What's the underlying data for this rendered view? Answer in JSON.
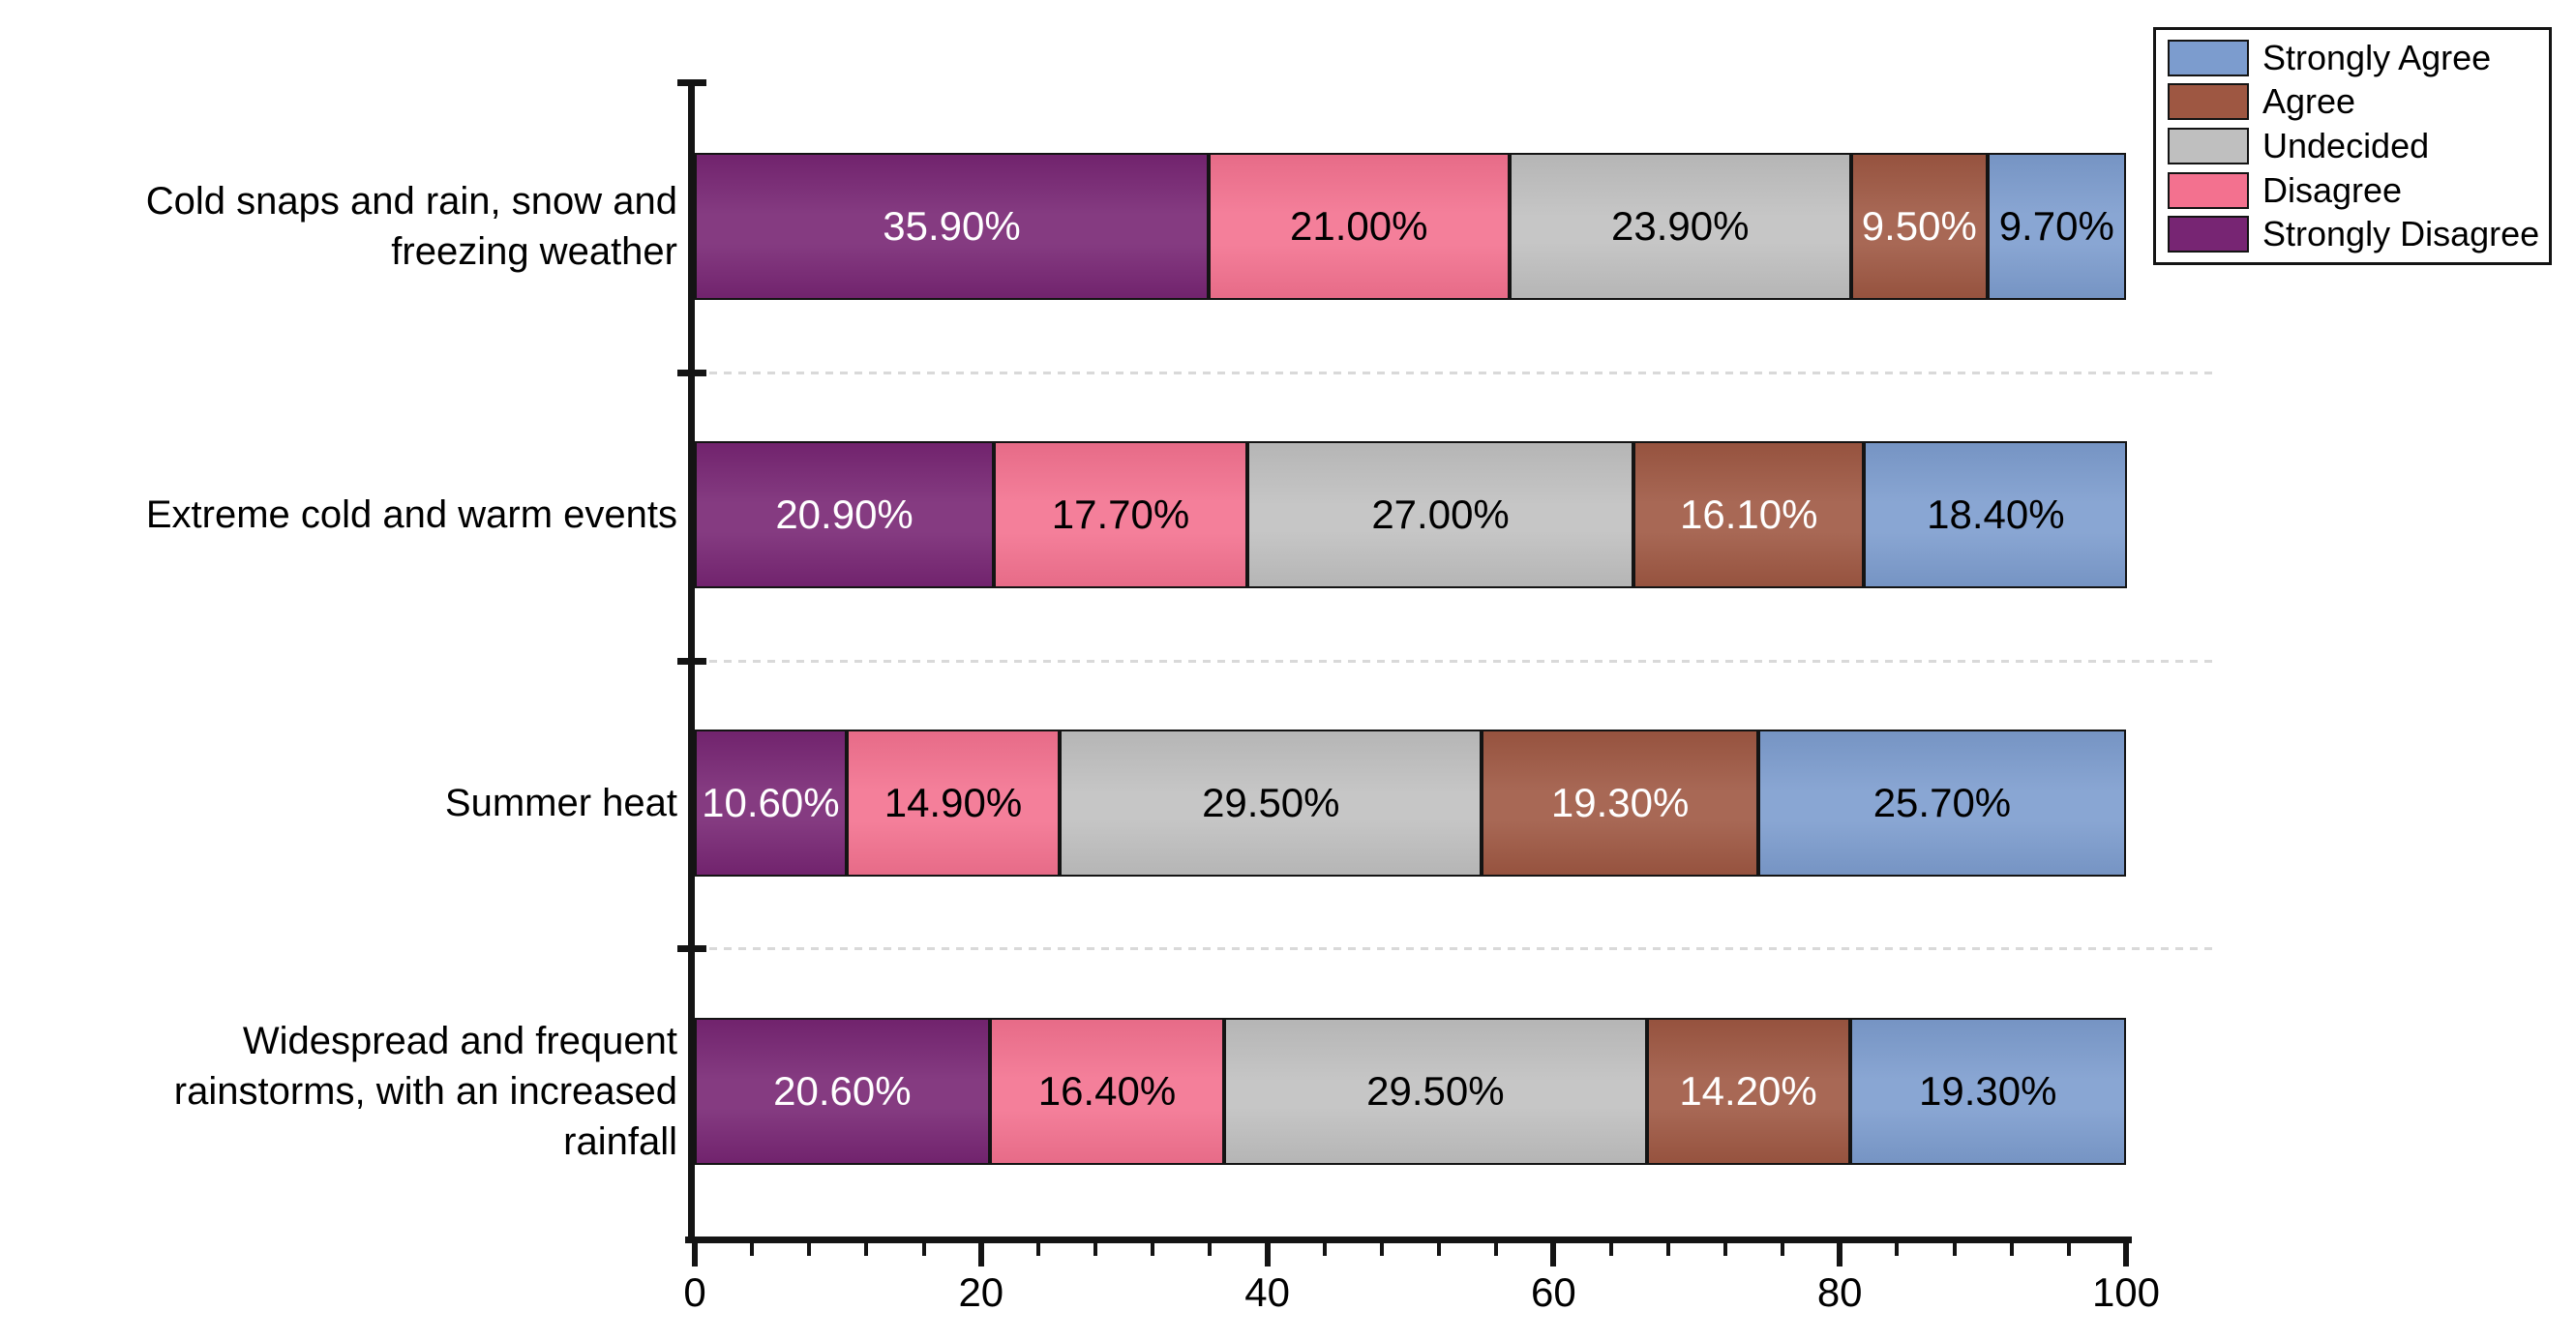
{
  "chart_data": {
    "type": "bar",
    "orientation": "horizontal",
    "stacked": true,
    "unit": "%",
    "title": "",
    "xlabel": "",
    "ylabel": "",
    "categories": [
      "Cold snaps and rain, snow and\nfreezing weather",
      "Extreme cold and warm events",
      "Summer heat",
      "Widespread and frequent\nrainstorms, with an increased\nrainfall"
    ],
    "series": [
      {
        "name": "Strongly Disagree",
        "color": "#772573",
        "text_color": "#ffffff",
        "values": [
          35.9,
          20.9,
          10.6,
          20.6
        ]
      },
      {
        "name": "Disagree",
        "color": "#F3718F",
        "text_color": "#000000",
        "values": [
          21.0,
          17.7,
          14.9,
          16.4
        ]
      },
      {
        "name": "Undecided",
        "color": "#BFBFBF",
        "text_color": "#000000",
        "values": [
          23.9,
          27.0,
          29.5,
          29.5
        ]
      },
      {
        "name": "Agree",
        "color": "#9E5742",
        "text_color": "#ffffff",
        "values": [
          9.5,
          16.1,
          19.3,
          14.2
        ]
      },
      {
        "name": "Strongly Agree",
        "color": "#7C9CCE",
        "text_color": "#000000",
        "values": [
          9.7,
          18.4,
          25.7,
          19.3
        ]
      }
    ],
    "value_labels": [
      [
        "35.90%",
        "21.00%",
        "23.90%",
        "9.50%",
        "9.70%"
      ],
      [
        "20.90%",
        "17.70%",
        "27.00%",
        "16.10%",
        "18.40%"
      ],
      [
        "10.60%",
        "14.90%",
        "29.50%",
        "19.30%",
        "25.70%"
      ],
      [
        "20.60%",
        "16.40%",
        "29.50%",
        "14.20%",
        "19.30%"
      ]
    ],
    "xlim": [
      0,
      100
    ],
    "x_ticks": [
      "0",
      "20",
      "40",
      "60",
      "80",
      "100"
    ],
    "x_minor_tick_step": 4,
    "axis_color": "#141414",
    "gridline": {
      "style": "dashed",
      "color": "#d9d9d9",
      "between_categories": true
    },
    "legend": {
      "position": "top-right",
      "items": [
        {
          "label": "Strongly Agree",
          "color": "#7C9CCE"
        },
        {
          "label": "Agree",
          "color": "#9E5742"
        },
        {
          "label": "Undecided",
          "color": "#BFBFBF"
        },
        {
          "label": "Disagree",
          "color": "#F3718F"
        },
        {
          "label": "Strongly Disagree",
          "color": "#772573"
        }
      ]
    }
  }
}
